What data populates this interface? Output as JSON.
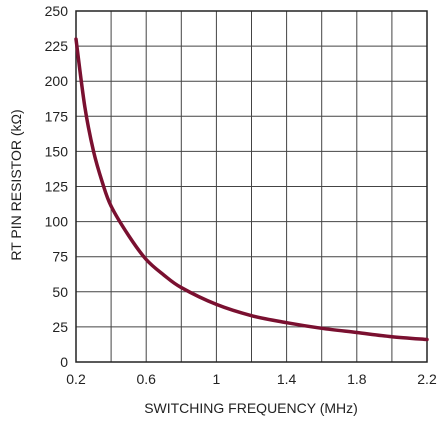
{
  "chart_data": {
    "type": "line",
    "xlabel": "SWITCHING FREQUENCY (MHz)",
    "ylabel": "RT PIN RESISTOR (kΩ)",
    "xlim": [
      0.2,
      2.2
    ],
    "ylim": [
      0,
      250
    ],
    "xticks": [
      0.2,
      0.6,
      1,
      1.4,
      1.8,
      2.2
    ],
    "xtick_labels": [
      "0.2",
      "0.6",
      "1",
      "1.4",
      "1.8",
      "2.2"
    ],
    "yticks": [
      0,
      25,
      50,
      75,
      100,
      125,
      150,
      175,
      200,
      225,
      250
    ],
    "ytick_labels": [
      "0",
      "25",
      "50",
      "75",
      "100",
      "125",
      "150",
      "175",
      "200",
      "225",
      "250"
    ],
    "grid": true,
    "series": [
      {
        "color": "#7a1030",
        "x": [
          0.2,
          0.25,
          0.3,
          0.35,
          0.4,
          0.5,
          0.6,
          0.7,
          0.8,
          1.0,
          1.2,
          1.4,
          1.6,
          1.8,
          2.0,
          2.2
        ],
        "y": [
          230,
          182,
          150,
          128,
          111,
          90,
          73,
          62,
          53,
          41,
          33,
          28,
          24,
          21,
          18,
          16
        ]
      }
    ]
  }
}
